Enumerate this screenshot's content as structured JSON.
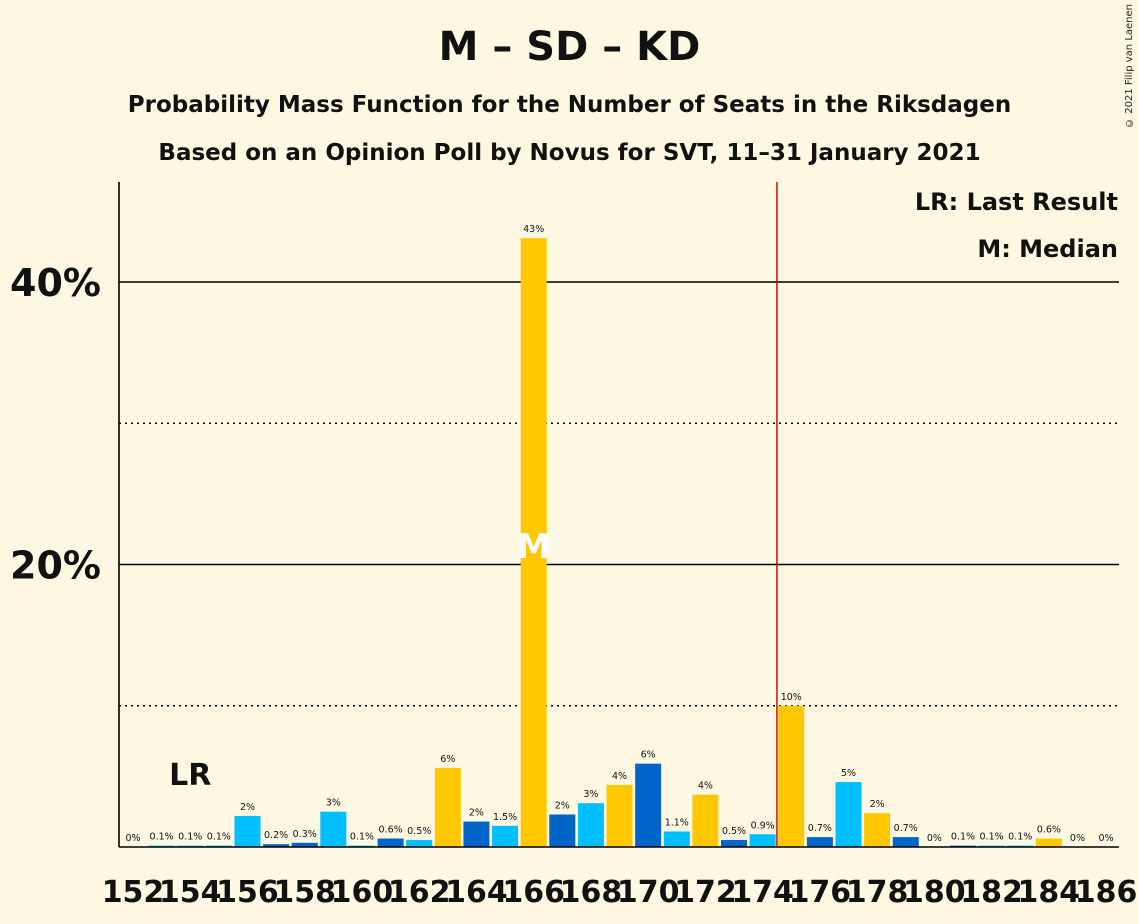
{
  "header": {
    "title": "M – SD – KD",
    "subtitle": "Probability Mass Function for the Number of Seats in the Riksdagen",
    "subtitle2": "Based on an Opinion Poll by Novus for SVT, 11–31 January 2021",
    "copyright": "© 2021 Filip van Laenen"
  },
  "legend": {
    "last_result": "LR: Last Result",
    "median": "M: Median"
  },
  "colors": {
    "background": "#FFF9E3",
    "yellow": "#FFC800",
    "cyan": "#00BFFF",
    "blue": "#0064C8",
    "majority_line": "#C00000",
    "text": "#111111"
  },
  "chart_data": {
    "type": "bar",
    "x": [
      152,
      153,
      154,
      155,
      156,
      157,
      158,
      159,
      160,
      161,
      162,
      163,
      164,
      165,
      166,
      167,
      168,
      169,
      170,
      171,
      172,
      173,
      174,
      175,
      176,
      177,
      178,
      179,
      180,
      181,
      182,
      183,
      184,
      185,
      186
    ],
    "values": [
      0,
      0.1,
      0.1,
      0.1,
      2.2,
      0.2,
      0.3,
      2.5,
      0.1,
      0.6,
      0.5,
      5.6,
      1.8,
      1.5,
      43.1,
      2.3,
      3.1,
      4.4,
      5.9,
      1.1,
      3.7,
      0.5,
      0.9,
      10.0,
      0.7,
      4.6,
      2.4,
      0.7,
      0,
      0.1,
      0.1,
      0.1,
      0.6,
      0,
      0
    ],
    "labels": [
      "0%",
      "0.1%",
      "0.1%",
      "0.1%",
      "2%",
      "0.2%",
      "0.3%",
      "3%",
      "0.1%",
      "0.6%",
      "0.5%",
      "6%",
      "2%",
      "1.5%",
      "43%",
      "2%",
      "3%",
      "4%",
      "6%",
      "1.1%",
      "4%",
      "0.5%",
      "0.9%",
      "10%",
      "0.7%",
      "5%",
      "2%",
      "0.7%",
      "0%",
      "0.1%",
      "0.1%",
      "0.1%",
      "0.6%",
      "0%",
      "0%"
    ],
    "bar_colors": [
      "cyan",
      "cyan",
      "cyan",
      "cyan",
      "cyan",
      "blue",
      "blue",
      "cyan",
      "cyan",
      "blue",
      "cyan",
      "yellow",
      "blue",
      "cyan",
      "yellow",
      "blue",
      "cyan",
      "yellow",
      "blue",
      "cyan",
      "yellow",
      "blue",
      "cyan",
      "yellow",
      "blue",
      "cyan",
      "yellow",
      "blue",
      "cyan",
      "blue",
      "cyan",
      "cyan",
      "yellow",
      "cyan",
      "cyan"
    ],
    "x_tick_labels": [
      "152",
      "154",
      "156",
      "158",
      "160",
      "162",
      "164",
      "166",
      "168",
      "170",
      "172",
      "174",
      "176",
      "178",
      "180",
      "182",
      "184",
      "186"
    ],
    "y_ticks": [
      {
        "value": 40,
        "label": "40%",
        "style": "solid"
      },
      {
        "value": 30,
        "label": "",
        "style": "dotted"
      },
      {
        "value": 20,
        "label": "20%",
        "style": "solid"
      },
      {
        "value": 10,
        "label": "",
        "style": "dotted"
      }
    ],
    "ylim": [
      0,
      47
    ],
    "last_result": {
      "seat": 154,
      "label": "LR"
    },
    "median": {
      "seat": 166,
      "label": "M"
    },
    "majority": 175
  }
}
